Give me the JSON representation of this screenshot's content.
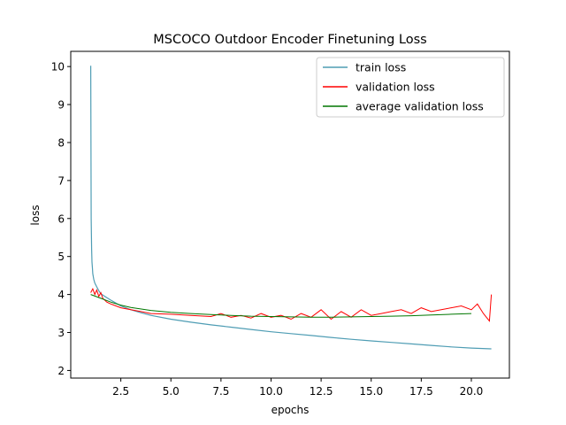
{
  "chart_data": {
    "type": "line",
    "title": "MSCOCO Outdoor Encoder Finetuning Loss",
    "xlabel": "epochs",
    "ylabel": "loss",
    "xlim": [
      0.0,
      21.9
    ],
    "ylim": [
      1.8,
      10.4
    ],
    "xticks": [
      2.5,
      5.0,
      7.5,
      10.0,
      12.5,
      15.0,
      17.5,
      20.0
    ],
    "xtick_labels": [
      "2.5",
      "5.0",
      "7.5",
      "10.0",
      "12.5",
      "15.0",
      "17.5",
      "20.0"
    ],
    "yticks": [
      2,
      3,
      4,
      5,
      6,
      7,
      8,
      9,
      10
    ],
    "ytick_labels": [
      "2",
      "3",
      "4",
      "5",
      "6",
      "7",
      "8",
      "9",
      "10"
    ],
    "grid": false,
    "legend_position": "top-right",
    "series": [
      {
        "name": "train loss",
        "color": "#4f9db4",
        "x": [
          1.0,
          1.02,
          1.04,
          1.06,
          1.08,
          1.1,
          1.15,
          1.2,
          1.3,
          1.4,
          1.5,
          1.7,
          2.0,
          2.5,
          3.0,
          3.5,
          4.0,
          5.0,
          6.0,
          7.0,
          8.0,
          9.0,
          10.0,
          11.0,
          12.0,
          13.0,
          14.0,
          15.0,
          16.0,
          17.0,
          18.0,
          19.0,
          20.0,
          21.0
        ],
        "values": [
          10.02,
          6.0,
          5.2,
          4.85,
          4.7,
          4.55,
          4.4,
          4.3,
          4.2,
          4.1,
          4.02,
          3.95,
          3.85,
          3.7,
          3.6,
          3.52,
          3.45,
          3.35,
          3.27,
          3.2,
          3.14,
          3.08,
          3.02,
          2.97,
          2.92,
          2.87,
          2.82,
          2.78,
          2.74,
          2.7,
          2.66,
          2.62,
          2.59,
          2.57
        ]
      },
      {
        "name": "validation loss",
        "color": "#ff0000",
        "x": [
          1.0,
          1.1,
          1.2,
          1.3,
          1.4,
          1.5,
          1.6,
          1.8,
          2.0,
          2.5,
          3.0,
          3.5,
          4.0,
          5.0,
          6.0,
          7.0,
          7.5,
          8.0,
          8.5,
          9.0,
          9.5,
          10.0,
          10.5,
          11.0,
          11.5,
          12.0,
          12.5,
          13.0,
          13.5,
          14.0,
          14.5,
          15.0,
          15.5,
          16.0,
          16.5,
          17.0,
          17.5,
          18.0,
          18.5,
          19.0,
          19.5,
          20.0,
          20.3,
          20.6,
          20.9,
          21.0
        ],
        "values": [
          4.05,
          4.15,
          4.0,
          4.12,
          3.95,
          4.05,
          3.9,
          3.8,
          3.75,
          3.65,
          3.6,
          3.55,
          3.5,
          3.48,
          3.45,
          3.42,
          3.5,
          3.4,
          3.45,
          3.38,
          3.5,
          3.4,
          3.45,
          3.35,
          3.5,
          3.4,
          3.6,
          3.35,
          3.55,
          3.4,
          3.6,
          3.45,
          3.5,
          3.55,
          3.6,
          3.5,
          3.65,
          3.55,
          3.6,
          3.65,
          3.7,
          3.6,
          3.75,
          3.5,
          3.3,
          4.0
        ]
      },
      {
        "name": "average validation loss",
        "color": "#007700",
        "x": [
          1.0,
          1.5,
          2.0,
          2.5,
          3.0,
          4.0,
          5.0,
          6.0,
          7.0,
          8.0,
          9.0,
          10.0,
          11.0,
          12.0,
          13.0,
          14.0,
          15.0,
          16.0,
          17.0,
          18.0,
          19.0,
          20.0
        ],
        "values": [
          4.0,
          3.9,
          3.8,
          3.72,
          3.66,
          3.58,
          3.53,
          3.5,
          3.47,
          3.45,
          3.43,
          3.42,
          3.41,
          3.4,
          3.4,
          3.41,
          3.42,
          3.43,
          3.44,
          3.46,
          3.48,
          3.5
        ]
      }
    ]
  }
}
